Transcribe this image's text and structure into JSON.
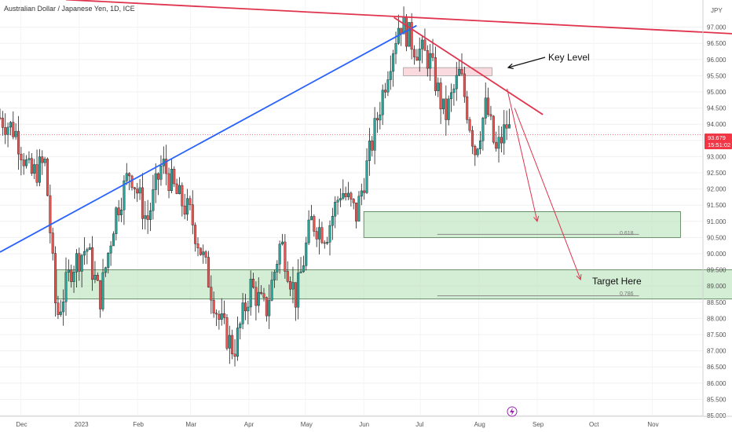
{
  "header": {
    "title": "Australian Dollar / Japanese Yen, 1D, ICE",
    "currency": "JPY"
  },
  "annotations": {
    "key_level": "Key Level",
    "target": "Target Here",
    "fib_618": "0.618",
    "fib_786": "0.786"
  },
  "price_badge": {
    "price": "93.679",
    "countdown": "15:51:02",
    "color": "#f23645"
  },
  "colors": {
    "up": "#26a69a",
    "down": "#ef5350",
    "candle": "#1f1f1f",
    "trend_blue": "#2962ff",
    "trend_red": "#e0334d",
    "zone_green": "#b7e1b9",
    "zone_pink": "#f7c1c8"
  },
  "chart_data": {
    "type": "candlestick",
    "title": "Australian Dollar / Japanese Yen, 1D, ICE",
    "ylabel": "JPY",
    "ylim": [
      84.8,
      97.6
    ],
    "y_ticks": [
      "85.000",
      "85.500",
      "86.000",
      "86.500",
      "87.000",
      "87.500",
      "88.000",
      "88.500",
      "89.000",
      "89.500",
      "90.000",
      "90.500",
      "91.000",
      "91.500",
      "92.000",
      "92.500",
      "93.000",
      "93.500",
      "94.000",
      "94.500",
      "95.000",
      "95.500",
      "96.000",
      "96.500",
      "97.000"
    ],
    "x_ticks": [
      "Dec",
      "2023",
      "Feb",
      "Mar",
      "Apr",
      "May",
      "Jun",
      "Jul",
      "Aug",
      "Sep",
      "Oct",
      "Nov"
    ],
    "last_price": 93.679,
    "series": [
      {
        "name": "AUDJPY",
        "close_path": [
          [
            "2022-11-20",
            94.2
          ],
          [
            "2022-11-28",
            93.8
          ],
          [
            "2022-12-06",
            92.4
          ],
          [
            "2022-12-14",
            92.8
          ],
          [
            "2022-12-20",
            88.0
          ],
          [
            "2022-12-28",
            89.6
          ],
          [
            "2023-01-05",
            90.2
          ],
          [
            "2023-01-12",
            88.6
          ],
          [
            "2023-01-20",
            91.2
          ],
          [
            "2023-01-28",
            92.6
          ],
          [
            "2023-02-06",
            91.0
          ],
          [
            "2023-02-14",
            92.8
          ],
          [
            "2023-02-22",
            91.8
          ],
          [
            "2023-03-01",
            91.2
          ],
          [
            "2023-03-08",
            89.8
          ],
          [
            "2023-03-16",
            88.0
          ],
          [
            "2023-03-24",
            87.0
          ],
          [
            "2023-04-02",
            89.0
          ],
          [
            "2023-04-10",
            88.2
          ],
          [
            "2023-04-18",
            90.4
          ],
          [
            "2023-04-26",
            88.6
          ],
          [
            "2023-05-04",
            91.0
          ],
          [
            "2023-05-12",
            90.6
          ],
          [
            "2023-05-20",
            92.0
          ],
          [
            "2023-05-28",
            91.2
          ],
          [
            "2023-06-06",
            93.6
          ],
          [
            "2023-06-14",
            95.8
          ],
          [
            "2023-06-20",
            97.2
          ],
          [
            "2023-06-28",
            96.4
          ],
          [
            "2023-07-06",
            96.0
          ],
          [
            "2023-07-14",
            94.2
          ],
          [
            "2023-07-22",
            95.6
          ],
          [
            "2023-07-30",
            93.2
          ],
          [
            "2023-08-05",
            94.6
          ],
          [
            "2023-08-10",
            93.1
          ],
          [
            "2023-08-16",
            94.0
          ],
          [
            "2023-08-18",
            93.679
          ]
        ]
      }
    ],
    "zones": [
      {
        "label": "0.618",
        "range": [
          90.5,
          91.3
        ],
        "color": "green"
      },
      {
        "label": "0.786",
        "range": [
          88.6,
          89.5
        ],
        "color": "green"
      },
      {
        "label": "Key Level",
        "range": [
          95.5,
          95.75
        ],
        "color": "pink"
      }
    ],
    "grid": true
  }
}
